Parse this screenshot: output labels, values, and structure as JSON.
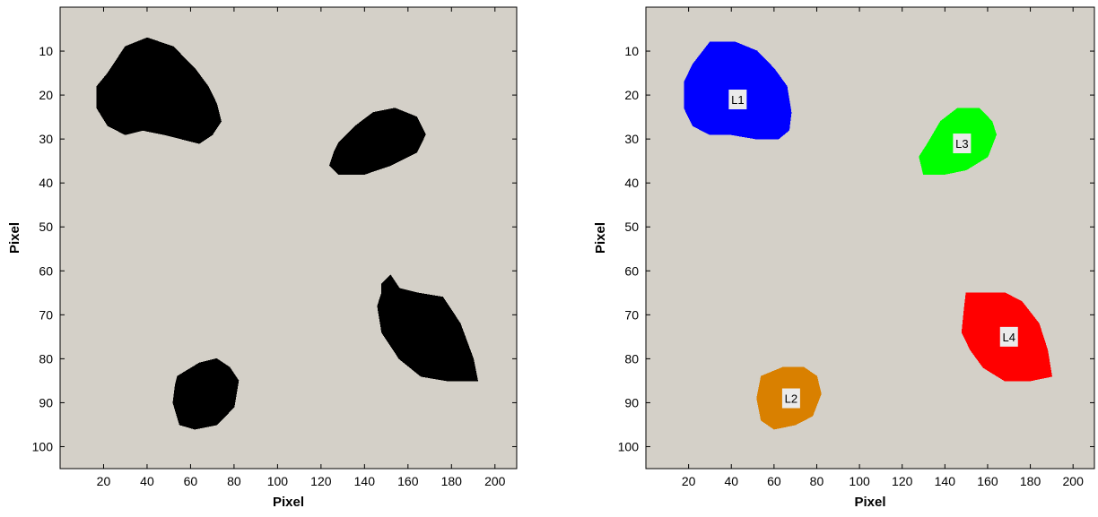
{
  "chart_data": [
    {
      "type": "image",
      "panel": "binary",
      "xlabel": "Pixel",
      "ylabel": "Pixel",
      "xlim": [
        0,
        210
      ],
      "ylim": [
        105,
        0
      ],
      "y_inverted": true,
      "xticks": [
        20,
        40,
        60,
        80,
        100,
        120,
        140,
        160,
        180,
        200
      ],
      "yticks": [
        10,
        20,
        30,
        40,
        50,
        60,
        70,
        80,
        90,
        100
      ],
      "background_color": "#d4d0c8",
      "blobs": [
        {
          "color": "#000000",
          "outline": [
            [
              22,
              15
            ],
            [
              30,
              9
            ],
            [
              40,
              7
            ],
            [
              52,
              9
            ],
            [
              62,
              14
            ],
            [
              68,
              18
            ],
            [
              72,
              22
            ],
            [
              74,
              26
            ],
            [
              70,
              29
            ],
            [
              64,
              31
            ],
            [
              56,
              30
            ],
            [
              48,
              29
            ],
            [
              38,
              28
            ],
            [
              30,
              29
            ],
            [
              22,
              27
            ],
            [
              17,
              23
            ],
            [
              17,
              18
            ]
          ]
        },
        {
          "color": "#000000",
          "outline": [
            [
              54,
              84
            ],
            [
              64,
              81
            ],
            [
              72,
              80
            ],
            [
              78,
              82
            ],
            [
              82,
              85
            ],
            [
              80,
              91
            ],
            [
              72,
              95
            ],
            [
              62,
              96
            ],
            [
              55,
              95
            ],
            [
              52,
              90
            ],
            [
              53,
              86
            ]
          ]
        },
        {
          "color": "#000000",
          "outline": [
            [
              128,
              31
            ],
            [
              136,
              27
            ],
            [
              144,
              24
            ],
            [
              154,
              23
            ],
            [
              164,
              25
            ],
            [
              168,
              29
            ],
            [
              164,
              33
            ],
            [
              152,
              36
            ],
            [
              140,
              38
            ],
            [
              128,
              38
            ],
            [
              124,
              36
            ],
            [
              126,
              33
            ]
          ]
        },
        {
          "color": "#000000",
          "outline": [
            [
              148,
              63
            ],
            [
              152,
              61
            ],
            [
              156,
              64
            ],
            [
              164,
              65
            ],
            [
              176,
              66
            ],
            [
              184,
              72
            ],
            [
              190,
              80
            ],
            [
              192,
              85
            ],
            [
              178,
              85
            ],
            [
              166,
              84
            ],
            [
              156,
              80
            ],
            [
              148,
              74
            ],
            [
              146,
              68
            ],
            [
              148,
              65
            ]
          ]
        }
      ]
    },
    {
      "type": "image",
      "panel": "labeled",
      "xlabel": "Pixel",
      "ylabel": "Pixel",
      "xlim": [
        0,
        210
      ],
      "ylim": [
        105,
        0
      ],
      "y_inverted": true,
      "xticks": [
        20,
        40,
        60,
        80,
        100,
        120,
        140,
        160,
        180,
        200
      ],
      "yticks": [
        10,
        20,
        30,
        40,
        50,
        60,
        70,
        80,
        90,
        100
      ],
      "background_color": "#d4d0c8",
      "blobs": [
        {
          "label": "L1",
          "label_at": [
            43,
            21
          ],
          "color": "#0000ff",
          "outline": [
            [
              22,
              13
            ],
            [
              30,
              8
            ],
            [
              42,
              8
            ],
            [
              52,
              10
            ],
            [
              60,
              14
            ],
            [
              66,
              18
            ],
            [
              68,
              24
            ],
            [
              67,
              28
            ],
            [
              62,
              30
            ],
            [
              52,
              30
            ],
            [
              40,
              29
            ],
            [
              30,
              29
            ],
            [
              22,
              27
            ],
            [
              18,
              23
            ],
            [
              18,
              17
            ]
          ]
        },
        {
          "label": "L2",
          "label_at": [
            68,
            89
          ],
          "color": "#d98000",
          "outline": [
            [
              54,
              84
            ],
            [
              64,
              82
            ],
            [
              74,
              82
            ],
            [
              80,
              84
            ],
            [
              82,
              88
            ],
            [
              78,
              93
            ],
            [
              70,
              95
            ],
            [
              60,
              96
            ],
            [
              54,
              94
            ],
            [
              52,
              89
            ]
          ]
        },
        {
          "label": "L3",
          "label_at": [
            148,
            31
          ],
          "color": "#00ff00",
          "outline": [
            [
              132,
              31
            ],
            [
              138,
              26
            ],
            [
              146,
              23
            ],
            [
              156,
              23
            ],
            [
              162,
              26
            ],
            [
              164,
              29
            ],
            [
              160,
              34
            ],
            [
              150,
              37
            ],
            [
              140,
              38
            ],
            [
              130,
              38
            ],
            [
              128,
              34
            ]
          ]
        },
        {
          "label": "L4",
          "label_at": [
            170,
            75
          ],
          "color": "#ff0000",
          "outline": [
            [
              150,
              65
            ],
            [
              168,
              65
            ],
            [
              176,
              67
            ],
            [
              184,
              72
            ],
            [
              188,
              78
            ],
            [
              190,
              84
            ],
            [
              180,
              85
            ],
            [
              168,
              85
            ],
            [
              158,
              82
            ],
            [
              152,
              78
            ],
            [
              148,
              74
            ],
            [
              149,
              69
            ]
          ]
        }
      ]
    }
  ]
}
